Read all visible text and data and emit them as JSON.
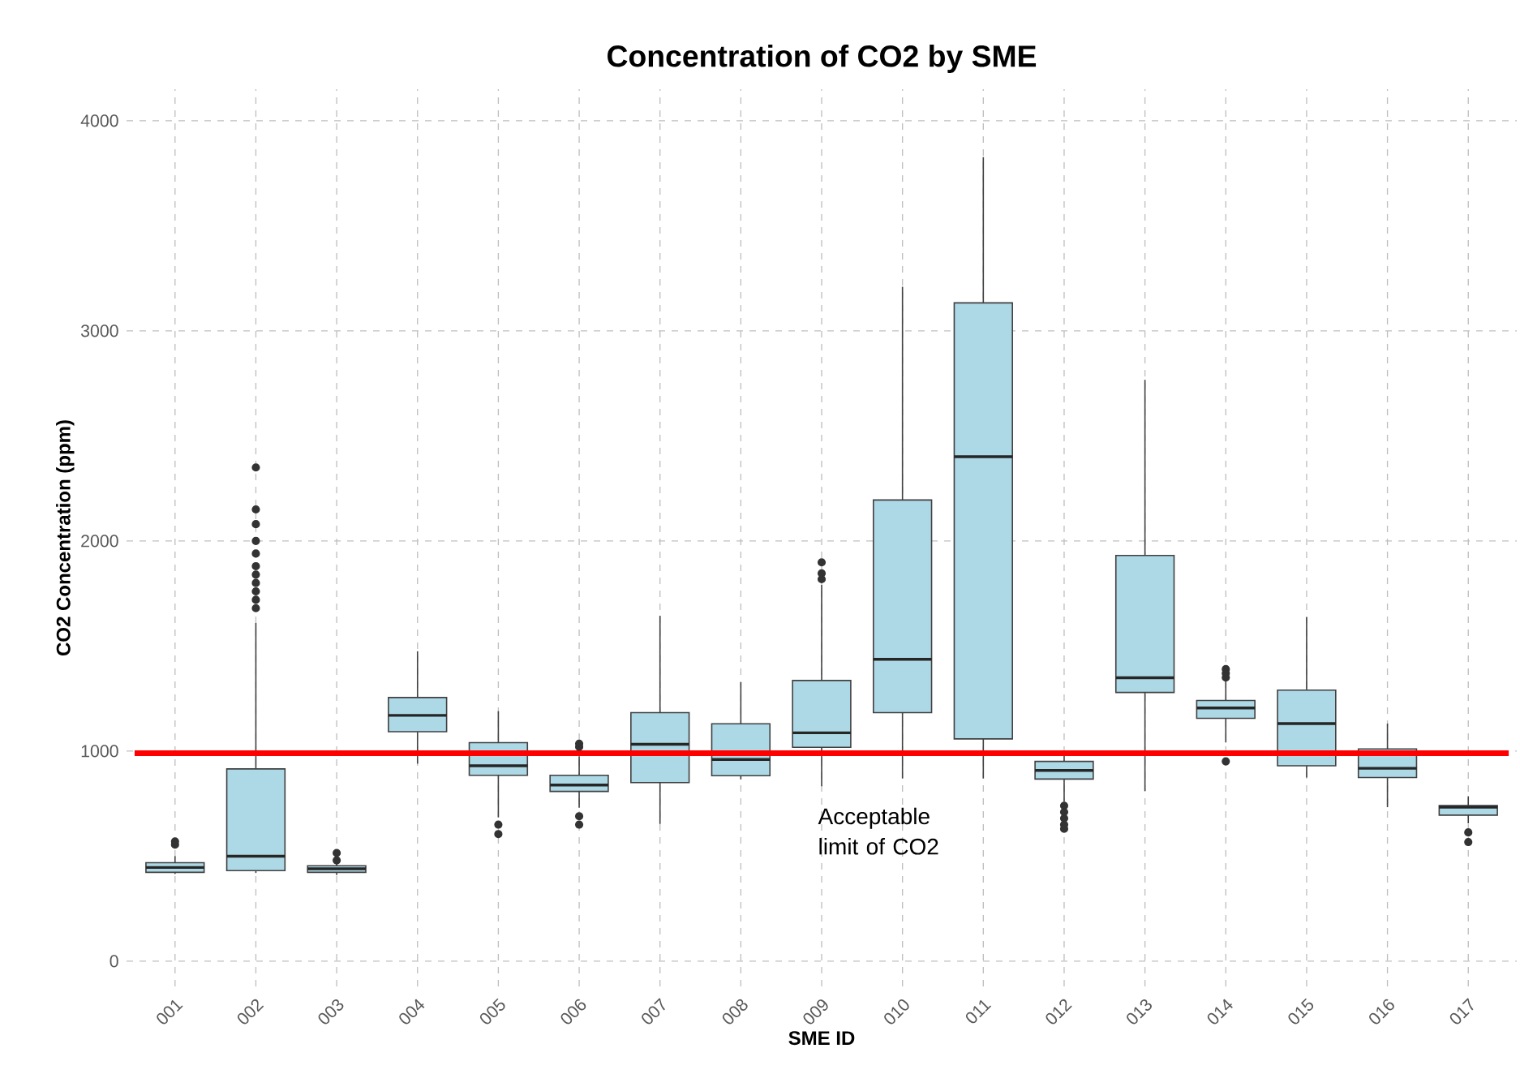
{
  "chart_data": {
    "type": "box",
    "title": "Concentration of CO2 by SME",
    "xlabel": "SME ID",
    "ylabel": "CO2 Concentration (ppm)",
    "categories": [
      "001",
      "002",
      "003",
      "004",
      "005",
      "006",
      "007",
      "008",
      "009",
      "010",
      "011",
      "012",
      "013",
      "014",
      "015",
      "016",
      "017"
    ],
    "color": "#add8e6",
    "boxes": [
      {
        "low": 415,
        "q1": 423,
        "median": 446,
        "q3": 469,
        "high": 500,
        "outliers": [
          555,
          570
        ]
      },
      {
        "low": 420,
        "q1": 431,
        "median": 500,
        "q3": 915,
        "high": 1610,
        "outliers": [
          1680,
          1720,
          1760,
          1800,
          1840,
          1880,
          1940,
          2000,
          2080,
          2150,
          2350
        ]
      },
      {
        "low": 410,
        "q1": 423,
        "median": 440,
        "q3": 454,
        "high": 470,
        "outliers": [
          480,
          515
        ]
      },
      {
        "low": 940,
        "q1": 1092,
        "median": 1170,
        "q3": 1255,
        "high": 1475
      },
      {
        "low": 685,
        "q1": 885,
        "median": 930,
        "q3": 1040,
        "high": 1190,
        "outliers": [
          605,
          650
        ]
      },
      {
        "low": 730,
        "q1": 808,
        "median": 838,
        "q3": 885,
        "high": 975,
        "outliers": [
          650,
          690,
          1020,
          1035
        ]
      },
      {
        "low": 653,
        "q1": 850,
        "median": 1032,
        "q3": 1183,
        "high": 1644
      },
      {
        "low": 865,
        "q1": 883,
        "median": 960,
        "q3": 1130,
        "high": 1328
      },
      {
        "low": 833,
        "q1": 1018,
        "median": 1087,
        "q3": 1336,
        "high": 1792,
        "outliers": [
          1818,
          1846,
          1898
        ]
      },
      {
        "low": 870,
        "q1": 1183,
        "median": 1437,
        "q3": 2195,
        "high": 3210
      },
      {
        "low": 870,
        "q1": 1058,
        "median": 2401,
        "q3": 3133,
        "high": 3827
      },
      {
        "low": 759,
        "q1": 867,
        "median": 908,
        "q3": 951,
        "high": 1002,
        "outliers": [
          630,
          650,
          680,
          710,
          740
        ]
      },
      {
        "low": 810,
        "q1": 1279,
        "median": 1349,
        "q3": 1931,
        "high": 2767
      },
      {
        "low": 1041,
        "q1": 1156,
        "median": 1205,
        "q3": 1241,
        "high": 1336,
        "outliers": [
          951,
          1350,
          1370,
          1390
        ]
      },
      {
        "low": 874,
        "q1": 930,
        "median": 1131,
        "q3": 1290,
        "high": 1638
      },
      {
        "low": 733,
        "q1": 874,
        "median": 918,
        "q3": 1010,
        "high": 1131
      },
      {
        "low": 656,
        "q1": 695,
        "median": 733,
        "q3": 741,
        "high": 785,
        "outliers": [
          567,
          613
        ]
      }
    ],
    "ylim": [
      -120,
      4150
    ],
    "yticks": [
      0,
      1000,
      2000,
      3000,
      4000
    ],
    "grid": true,
    "ref_lines": [
      {
        "axis": "y",
        "value": 990,
        "label": "Acceptable limit of CO2",
        "color": "#ff0000"
      }
    ]
  }
}
